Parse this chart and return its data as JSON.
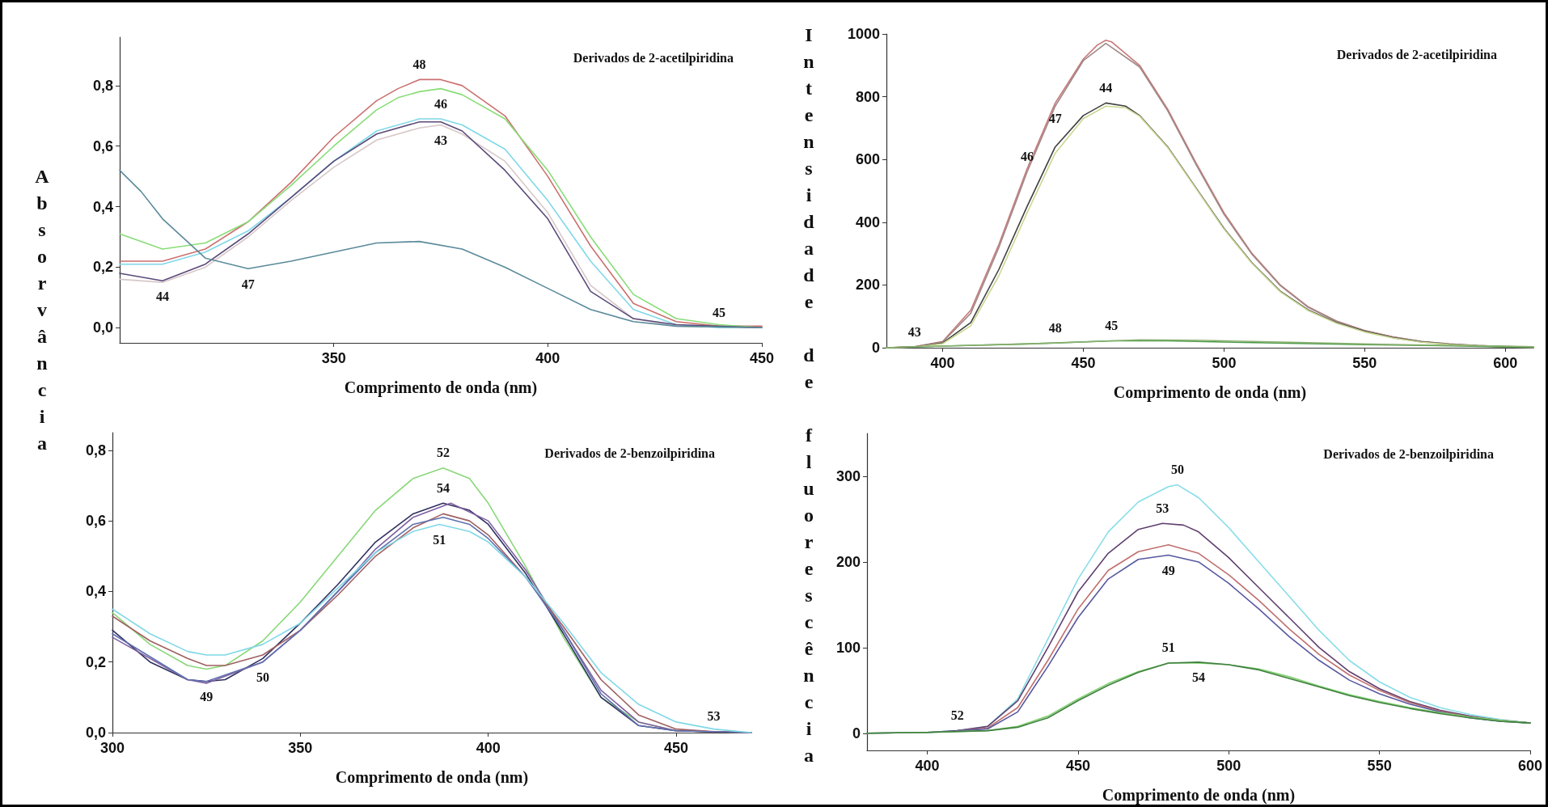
{
  "chart_data": [
    {
      "type": "line",
      "title": "Derivados de 2-acetilpiridina",
      "xlabel": "Comprimento de onda (nm)",
      "ylabel": "Absorvância",
      "xlim": [
        300,
        450
      ],
      "ylim": [
        -0.05,
        0.96
      ],
      "xticks": [
        350,
        400,
        450
      ],
      "yticks": [
        {
          "value": 0,
          "label": "0,0"
        },
        {
          "value": 0.2,
          "label": "0,2"
        },
        {
          "value": 0.4,
          "label": "0,4"
        },
        {
          "value": 0.6,
          "label": "0,6"
        },
        {
          "value": 0.8,
          "label": "0,8"
        }
      ],
      "series": [
        {
          "name": "48",
          "color": "#cc7070",
          "x": [
            300,
            310,
            320,
            330,
            340,
            350,
            360,
            365,
            370,
            375,
            380,
            390,
            400,
            410,
            420,
            430,
            440,
            450
          ],
          "values": [
            0.22,
            0.22,
            0.26,
            0.35,
            0.48,
            0.63,
            0.75,
            0.79,
            0.82,
            0.82,
            0.8,
            0.7,
            0.5,
            0.27,
            0.08,
            0.02,
            0.005,
            0.005
          ]
        },
        {
          "name": "46",
          "color": "#88dd77",
          "x": [
            300,
            310,
            320,
            330,
            340,
            350,
            360,
            365,
            370,
            375,
            380,
            390,
            400,
            410,
            420,
            430,
            440,
            450
          ],
          "values": [
            0.31,
            0.26,
            0.28,
            0.35,
            0.47,
            0.6,
            0.72,
            0.76,
            0.78,
            0.79,
            0.77,
            0.69,
            0.52,
            0.3,
            0.11,
            0.03,
            0.01,
            0
          ]
        },
        {
          "name": "45",
          "color": "#7fd8e8",
          "x": [
            300,
            310,
            320,
            330,
            340,
            350,
            360,
            370,
            375,
            380,
            390,
            400,
            410,
            420,
            430,
            440,
            450
          ],
          "values": [
            0.21,
            0.21,
            0.25,
            0.32,
            0.43,
            0.55,
            0.65,
            0.69,
            0.69,
            0.67,
            0.59,
            0.42,
            0.22,
            0.06,
            0.01,
            0,
            0
          ]
        },
        {
          "name": "43",
          "color": "#d8c8c8",
          "x": [
            300,
            310,
            320,
            330,
            340,
            350,
            360,
            370,
            375,
            380,
            390,
            400,
            410,
            420,
            430,
            450
          ],
          "values": [
            0.16,
            0.15,
            0.2,
            0.3,
            0.42,
            0.53,
            0.62,
            0.66,
            0.67,
            0.64,
            0.55,
            0.38,
            0.14,
            0.03,
            0.005,
            0
          ]
        },
        {
          "name": "44",
          "color": "#5a4a7a",
          "x": [
            300,
            310,
            320,
            330,
            340,
            350,
            360,
            370,
            375,
            380,
            390,
            400,
            410,
            420,
            430,
            450
          ],
          "values": [
            0.18,
            0.155,
            0.21,
            0.31,
            0.43,
            0.55,
            0.64,
            0.68,
            0.68,
            0.65,
            0.52,
            0.36,
            0.12,
            0.03,
            0.01,
            0
          ]
        },
        {
          "name": "47",
          "color": "#5a8a9a",
          "x": [
            300,
            305,
            310,
            320,
            330,
            340,
            350,
            360,
            370,
            380,
            390,
            400,
            410,
            420,
            430,
            450
          ],
          "values": [
            0.52,
            0.45,
            0.36,
            0.23,
            0.195,
            0.22,
            0.25,
            0.28,
            0.285,
            0.26,
            0.2,
            0.13,
            0.06,
            0.02,
            0.005,
            0
          ]
        }
      ]
    },
    {
      "type": "line",
      "title": "Derivados de 2-acetilpiridina",
      "xlabel": "Comprimento de onda (nm)",
      "ylabel": "Intensidade de fluorescência",
      "xlim": [
        380,
        610
      ],
      "ylim": [
        0,
        1000
      ],
      "xticks": [
        400,
        450,
        500,
        550,
        600
      ],
      "yticks": [
        0,
        200,
        400,
        600,
        800,
        1000
      ],
      "series": [
        {
          "name": "47",
          "color": "#c87878",
          "x": [
            380,
            390,
            400,
            410,
            420,
            430,
            440,
            450,
            455,
            458,
            460,
            470,
            480,
            490,
            500,
            510,
            520,
            530,
            540,
            550,
            560,
            570,
            580,
            590,
            600,
            610
          ],
          "values": [
            0,
            3,
            20,
            120,
            330,
            570,
            780,
            920,
            965,
            980,
            975,
            900,
            760,
            590,
            430,
            300,
            200,
            130,
            85,
            55,
            35,
            20,
            12,
            7,
            4,
            2
          ]
        },
        {
          "name": "46",
          "color": "#a08888",
          "x": [
            380,
            390,
            400,
            410,
            420,
            430,
            440,
            450,
            458,
            470,
            480,
            490,
            500,
            510,
            520,
            530,
            540,
            550,
            560,
            570,
            580,
            590,
            600,
            610
          ],
          "values": [
            0,
            3,
            18,
            110,
            320,
            560,
            770,
            915,
            970,
            895,
            755,
            585,
            425,
            297,
            198,
            128,
            84,
            54,
            34,
            20,
            12,
            7,
            4,
            2
          ]
        },
        {
          "name": "44",
          "color": "#404040",
          "x": [
            380,
            390,
            400,
            410,
            420,
            430,
            440,
            450,
            458,
            465,
            470,
            480,
            490,
            500,
            510,
            520,
            530,
            540,
            550,
            560,
            570,
            580,
            590,
            600,
            610
          ],
          "values": [
            0,
            2,
            15,
            80,
            250,
            450,
            640,
            740,
            780,
            770,
            740,
            640,
            510,
            380,
            270,
            180,
            120,
            80,
            52,
            32,
            19,
            11,
            6,
            3,
            1
          ]
        },
        {
          "name": "43",
          "color": "#c8d890",
          "x": [
            380,
            390,
            400,
            410,
            420,
            430,
            440,
            450,
            458,
            465,
            470,
            480,
            490,
            500,
            510,
            520,
            530,
            540,
            550,
            560,
            570,
            580,
            590,
            600,
            610
          ],
          "values": [
            0,
            2,
            13,
            70,
            230,
            430,
            620,
            730,
            770,
            765,
            738,
            638,
            508,
            378,
            268,
            178,
            118,
            78,
            50,
            31,
            18,
            10,
            6,
            3,
            1
          ]
        },
        {
          "name": "45",
          "color": "#4a9a4a",
          "x": [
            380,
            400,
            430,
            460,
            480,
            500,
            550,
            600,
            610
          ],
          "values": [
            0,
            5,
            12,
            22,
            22,
            18,
            10,
            3,
            2
          ]
        },
        {
          "name": "48",
          "color": "#8ab070",
          "x": [
            380,
            400,
            440,
            470,
            490,
            520,
            560,
            600,
            610
          ],
          "values": [
            0,
            5,
            15,
            25,
            24,
            18,
            10,
            5,
            3
          ]
        }
      ]
    },
    {
      "type": "line",
      "title": "Derivados de 2-benzoilpiridina",
      "xlabel": "Comprimento de onda (nm)",
      "xlim": [
        300,
        470
      ],
      "ylim": [
        0,
        0.85
      ],
      "xticks": [
        300,
        350,
        400,
        450
      ],
      "yticks": [
        {
          "value": 0,
          "label": "0,0"
        },
        {
          "value": 0.2,
          "label": "0,2"
        },
        {
          "value": 0.4,
          "label": "0,4"
        },
        {
          "value": 0.6,
          "label": "0,6"
        },
        {
          "value": 0.8,
          "label": "0,8"
        }
      ],
      "series": [
        {
          "name": "52",
          "color": "#88d878",
          "x": [
            300,
            310,
            320,
            325,
            330,
            340,
            350,
            360,
            370,
            380,
            388,
            395,
            400,
            410,
            420,
            430,
            440,
            450,
            470
          ],
          "values": [
            0.34,
            0.25,
            0.19,
            0.18,
            0.19,
            0.26,
            0.37,
            0.5,
            0.63,
            0.72,
            0.75,
            0.72,
            0.65,
            0.47,
            0.27,
            0.1,
            0.03,
            0.005,
            0
          ]
        },
        {
          "name": "54",
          "color": "#303060",
          "x": [
            300,
            310,
            320,
            325,
            330,
            340,
            350,
            360,
            370,
            380,
            388,
            395,
            400,
            410,
            420,
            430,
            440,
            450,
            470
          ],
          "values": [
            0.29,
            0.2,
            0.15,
            0.145,
            0.15,
            0.21,
            0.31,
            0.42,
            0.54,
            0.62,
            0.65,
            0.63,
            0.59,
            0.45,
            0.28,
            0.1,
            0.02,
            0.005,
            0
          ]
        },
        {
          "name": "50",
          "color": "#8060a0",
          "x": [
            300,
            320,
            325,
            340,
            350,
            360,
            370,
            380,
            390,
            400,
            410,
            420,
            430,
            440,
            450,
            470
          ],
          "values": [
            0.27,
            0.15,
            0.14,
            0.2,
            0.29,
            0.4,
            0.52,
            0.61,
            0.65,
            0.6,
            0.46,
            0.29,
            0.12,
            0.03,
            0.005,
            0
          ]
        },
        {
          "name": "53",
          "color": "#a06060",
          "x": [
            300,
            310,
            320,
            325,
            330,
            340,
            350,
            360,
            370,
            380,
            388,
            395,
            400,
            410,
            420,
            430,
            440,
            450,
            460,
            470
          ],
          "values": [
            0.33,
            0.26,
            0.21,
            0.19,
            0.19,
            0.22,
            0.29,
            0.39,
            0.5,
            0.58,
            0.62,
            0.6,
            0.56,
            0.44,
            0.3,
            0.15,
            0.05,
            0.01,
            0.003,
            0
          ]
        },
        {
          "name": "49",
          "color": "#6070b0",
          "x": [
            300,
            320,
            325,
            340,
            350,
            360,
            370,
            380,
            388,
            395,
            400,
            410,
            420,
            430,
            440,
            450,
            470
          ],
          "values": [
            0.28,
            0.15,
            0.145,
            0.2,
            0.29,
            0.4,
            0.51,
            0.59,
            0.61,
            0.59,
            0.55,
            0.44,
            0.29,
            0.11,
            0.02,
            0.005,
            0
          ]
        },
        {
          "name": "51",
          "color": "#80d8e8",
          "x": [
            300,
            310,
            320,
            325,
            330,
            340,
            350,
            360,
            370,
            380,
            387,
            395,
            400,
            410,
            420,
            430,
            440,
            450,
            460,
            470
          ],
          "values": [
            0.35,
            0.28,
            0.23,
            0.22,
            0.22,
            0.25,
            0.31,
            0.41,
            0.51,
            0.57,
            0.59,
            0.57,
            0.54,
            0.44,
            0.31,
            0.17,
            0.08,
            0.03,
            0.01,
            0
          ]
        }
      ]
    },
    {
      "type": "line",
      "title": "Derivados de 2-benzoilpiridina",
      "xlabel": "Comprimento de onda (nm)",
      "xlim": [
        380,
        600
      ],
      "ylim": [
        -20,
        350
      ],
      "xticks": [
        400,
        450,
        500,
        550,
        600
      ],
      "yticks": [
        0,
        100,
        200,
        300
      ],
      "series": [
        {
          "name": "50",
          "color": "#88dde8",
          "x": [
            380,
            400,
            410,
            420,
            430,
            440,
            450,
            460,
            470,
            480,
            483,
            490,
            500,
            510,
            520,
            530,
            540,
            550,
            560,
            570,
            580,
            590,
            600
          ],
          "values": [
            0,
            1,
            3,
            8,
            40,
            110,
            180,
            235,
            270,
            288,
            290,
            275,
            240,
            200,
            160,
            120,
            85,
            60,
            42,
            30,
            22,
            16,
            12
          ]
        },
        {
          "name": "53",
          "color": "#604070",
          "x": [
            380,
            400,
            410,
            420,
            430,
            440,
            450,
            460,
            470,
            478,
            485,
            490,
            500,
            510,
            520,
            530,
            540,
            550,
            560,
            570,
            580,
            590,
            600
          ],
          "values": [
            0,
            1,
            3,
            8,
            38,
            100,
            165,
            210,
            238,
            245,
            243,
            235,
            205,
            170,
            135,
            100,
            72,
            52,
            37,
            27,
            20,
            15,
            12
          ]
        },
        {
          "name": "52",
          "color": "#c07070",
          "x": [
            410,
            420,
            430,
            440,
            450,
            460,
            470,
            480,
            490,
            500,
            510,
            520,
            530,
            540,
            550,
            560,
            570,
            580,
            590,
            600
          ],
          "values": [
            3,
            6,
            30,
            85,
            145,
            190,
            212,
            220,
            210,
            185,
            155,
            122,
            92,
            68,
            50,
            36,
            26,
            19,
            15,
            12
          ]
        },
        {
          "name": "49",
          "color": "#5858a0",
          "x": [
            410,
            420,
            430,
            440,
            450,
            460,
            470,
            480,
            490,
            500,
            510,
            520,
            530,
            540,
            550,
            560,
            570,
            580,
            590,
            600
          ],
          "values": [
            3,
            5,
            25,
            78,
            135,
            180,
            203,
            208,
            200,
            175,
            145,
            113,
            85,
            62,
            46,
            34,
            25,
            18,
            14,
            12
          ]
        },
        {
          "name": "51",
          "color": "#80d070",
          "x": [
            380,
            400,
            420,
            430,
            440,
            450,
            460,
            470,
            480,
            490,
            500,
            510,
            520,
            530,
            540,
            550,
            560,
            570,
            580,
            590,
            600
          ],
          "values": [
            0,
            1,
            3,
            8,
            20,
            40,
            58,
            72,
            82,
            82,
            80,
            75,
            66,
            55,
            45,
            37,
            30,
            24,
            19,
            15,
            12
          ]
        },
        {
          "name": "54",
          "color": "#408040",
          "x": [
            380,
            400,
            420,
            430,
            440,
            450,
            460,
            470,
            480,
            490,
            500,
            510,
            520,
            530,
            540,
            550,
            560,
            570,
            580,
            590,
            600
          ],
          "values": [
            0,
            1,
            3,
            7,
            18,
            38,
            56,
            71,
            82,
            83,
            80,
            74,
            64,
            54,
            44,
            36,
            29,
            23,
            18,
            14,
            12
          ]
        }
      ]
    }
  ]
}
